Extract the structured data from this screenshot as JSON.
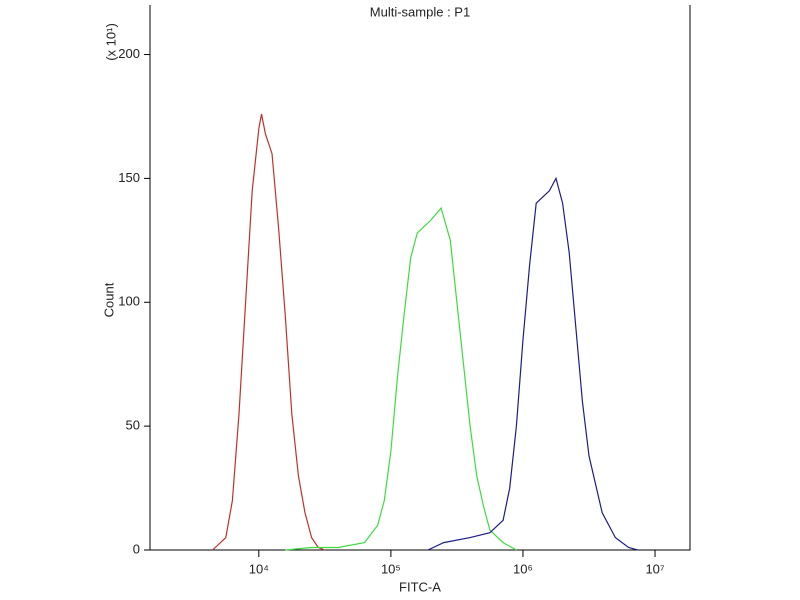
{
  "chart_data": {
    "type": "line",
    "title": "Multi-sample : P1",
    "xlabel": "FITC-A",
    "ylabel": "Count",
    "ylabel_multiplier": "(x 10¹)",
    "xscale": "log",
    "xlim": [
      1500,
      18400000
    ],
    "xticks": [
      {
        "value": 10000,
        "label": "10⁴"
      },
      {
        "value": 100000,
        "label": "10⁵"
      },
      {
        "value": 1000000,
        "label": "10⁶"
      },
      {
        "value": 10000000,
        "label": "10⁷"
      }
    ],
    "ylim": [
      0,
      220
    ],
    "yticks": [
      0,
      50,
      100,
      150,
      200
    ],
    "series": [
      {
        "color": "#c0302a",
        "x": [
          4467,
          5623,
          6310,
          7079,
          7943,
          8913,
          10000,
          10471,
          11220,
          12589,
          14125,
          15849,
          17783,
          19953,
          22387,
          25119,
          28184,
          31623
        ],
        "values": [
          0,
          5,
          20,
          55,
          100,
          145,
          170,
          176,
          168,
          160,
          130,
          95,
          55,
          30,
          15,
          5,
          1,
          0
        ]
      },
      {
        "color": "#3ddc3d",
        "x": [
          15849,
          25119,
          39811,
          63096,
          79433,
          89125,
          100000,
          112202,
          125893,
          141254,
          158489,
          199526,
          239883,
          281838,
          316228,
          354813,
          398107,
          446684,
          501187,
          562341,
          707946,
          891251
        ],
        "values": [
          0,
          1,
          1,
          3,
          10,
          20,
          40,
          70,
          95,
          118,
          128,
          133,
          138,
          125,
          100,
          75,
          50,
          30,
          18,
          8,
          3,
          0
        ]
      },
      {
        "color": "#1c1c8c",
        "x": [
          190546,
          251189,
          398107,
          562341,
          707946,
          794328,
          891251,
          1000000,
          1122018,
          1258925,
          1584893,
          1778279,
          1995262,
          2238721,
          2511886,
          2818383,
          3162278,
          3981072,
          5011872,
          6309573,
          7413102
        ],
        "values": [
          0,
          3,
          5,
          7,
          12,
          25,
          50,
          85,
          115,
          140,
          145,
          150,
          140,
          120,
          90,
          60,
          38,
          15,
          5,
          1,
          0
        ]
      }
    ]
  }
}
